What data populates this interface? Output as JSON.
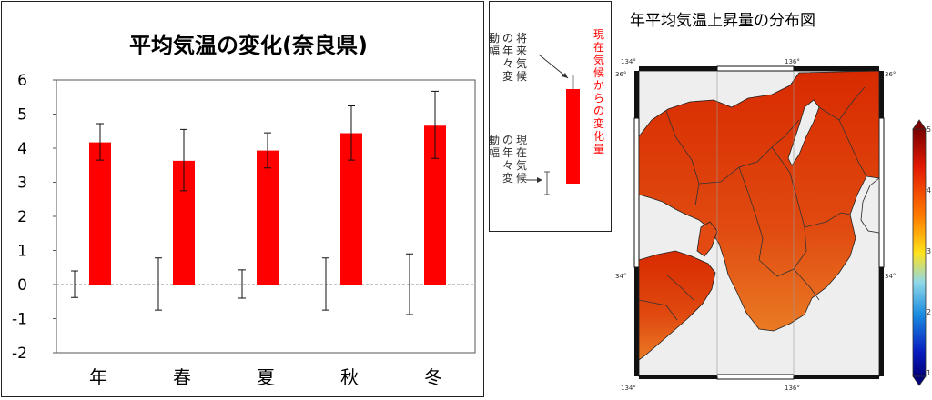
{
  "chart_data": {
    "type": "bar",
    "title": "平均気温の変化(奈良県)",
    "categories": [
      "年",
      "春",
      "夏",
      "秋",
      "冬"
    ],
    "ylim": [
      -2,
      6
    ],
    "yticks": [
      "6",
      "5",
      "4",
      "3",
      "2",
      "1",
      "0",
      "-1",
      "-2"
    ],
    "grid": false,
    "zero_line": "dashed",
    "series": [
      {
        "values": [
          0,
          0,
          0,
          0,
          0
        ],
        "error_low": [
          -0.38,
          -0.75,
          -0.4,
          -0.75,
          -0.88
        ],
        "error_high": [
          0.4,
          0.78,
          0.43,
          0.78,
          0.9
        ],
        "color": "#000000"
      },
      {
        "values": [
          4.17,
          3.63,
          3.93,
          4.44,
          4.66
        ],
        "error_low": [
          3.65,
          2.75,
          3.42,
          3.65,
          3.7
        ],
        "error_high": [
          4.72,
          4.55,
          4.45,
          5.24,
          5.67
        ],
        "color": "#ff0000"
      }
    ]
  },
  "legend": {
    "future_label": "将来気候の年々変動幅",
    "present_label": "現在気候の年々変動幅",
    "change_label": "現在気候からの変化量",
    "change_color": "#ff0000"
  },
  "map": {
    "title": "年平均気温上昇量の分布図",
    "lon_labels": [
      "134°",
      "136°"
    ],
    "lat_labels": [
      "36°",
      "34°"
    ],
    "colorbar_labels": [
      "5",
      "4",
      "3",
      "2",
      "1"
    ]
  }
}
